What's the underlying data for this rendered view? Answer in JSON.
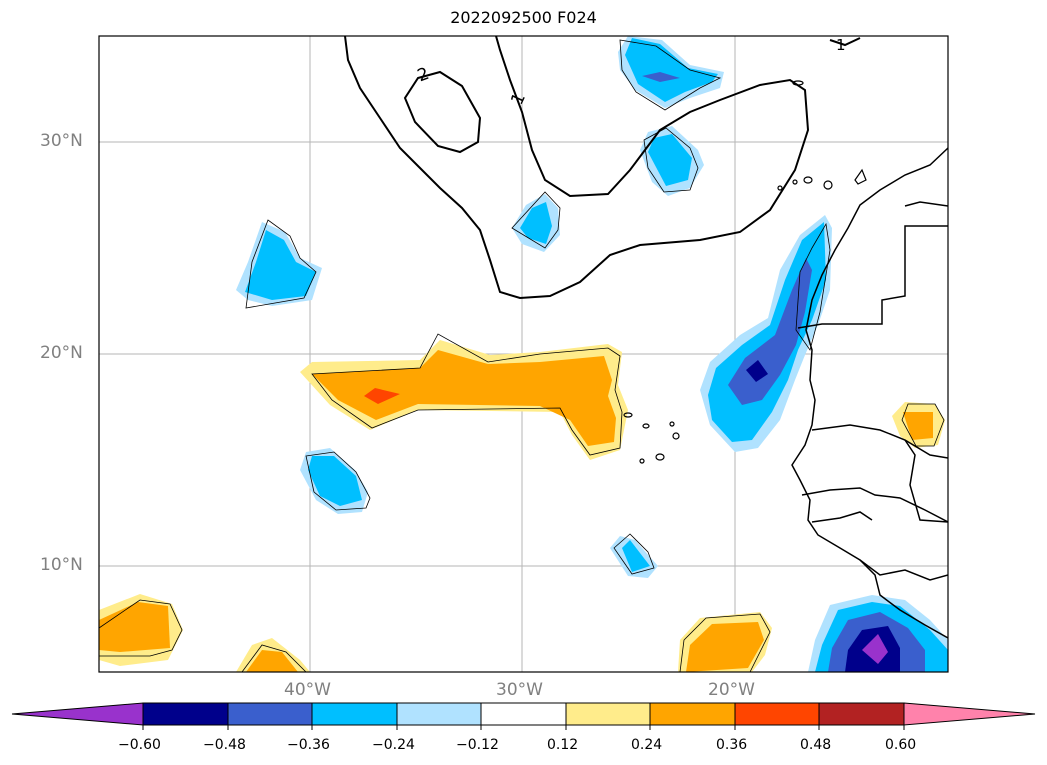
{
  "title": "2022092500 F024",
  "lat_labels": [
    "30°N",
    "20°N",
    "10°N"
  ],
  "lon_labels": [
    "40°W",
    "30°W",
    "20°W"
  ],
  "contour_labels": [
    "2",
    "1",
    "1"
  ],
  "colorbar": {
    "colors": [
      "#9932cc",
      "#00008b",
      "#3a5fcd",
      "#00bfff",
      "#b0e2ff",
      "#ffffff",
      "#ffec8b",
      "#ffa500",
      "#ff4500",
      "#b22222",
      "#ff82ab"
    ],
    "ticks": [
      "−0.60",
      "−0.48",
      "−0.36",
      "−0.24",
      "−0.12",
      "0.12",
      "0.24",
      "0.36",
      "0.48",
      "0.60"
    ]
  },
  "chart_data": {
    "type": "map",
    "title": "2022092500 F024",
    "lat_range": [
      5,
      35
    ],
    "lon_range": [
      -50,
      -10
    ],
    "gridlines": true,
    "levels": [
      -0.6,
      -0.48,
      -0.36,
      -0.24,
      -0.12,
      0.12,
      0.24,
      0.36,
      0.48,
      0.6
    ]
  }
}
